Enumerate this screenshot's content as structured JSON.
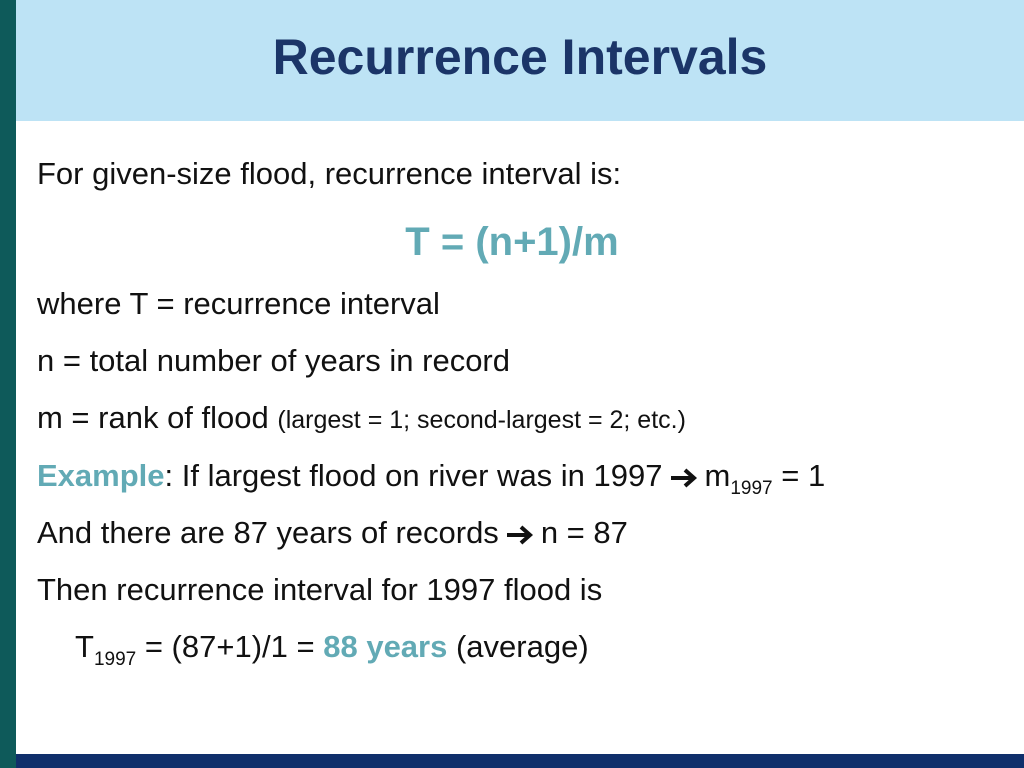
{
  "title": "Recurrence Intervals",
  "body": {
    "intro": "For given-size flood, recurrence interval is:",
    "formula": "T = (n+1)/m",
    "where_t": "where T = recurrence interval",
    "where_n": "n = total number of years in record",
    "where_m": {
      "main": "m = rank of flood",
      "note": "(largest = 1; second-largest = 2; etc.)"
    },
    "example": {
      "label": "Example",
      "text": ": If largest flood on river was in 1997",
      "m": "m",
      "sub": "1997",
      "eq": "= 1"
    },
    "records": {
      "text": "And there are 87 years of records",
      "result": "n = 87"
    },
    "then": "Then recurrence interval for 1997 flood is",
    "result": {
      "t": "T",
      "sub": "1997",
      "eq": "= (87+1)/1 =",
      "highlight": "88 years",
      "note": "(average)"
    }
  }
}
